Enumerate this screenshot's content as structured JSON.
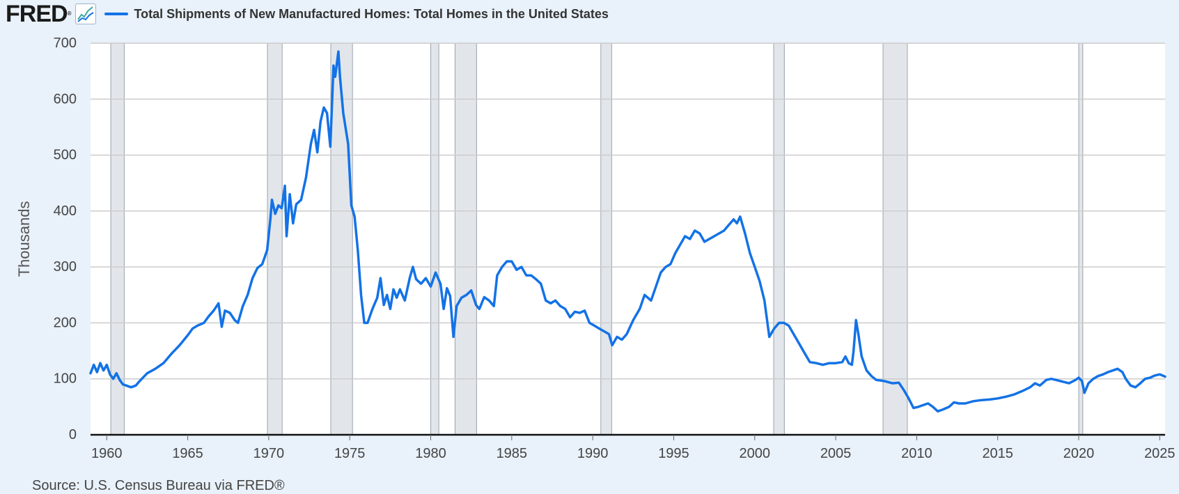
{
  "header": {
    "logo_text": "FRED",
    "logo_mark": "®",
    "icon": "line-graph-icon",
    "title": "Total Shipments of New Manufactured Homes: Total Homes in the United States"
  },
  "source": "Source: U.S. Census Bureau via FRED®",
  "colors": {
    "series": "#1372e6",
    "recession": "#e2e6ea",
    "recession_edge": "#9aa3ab",
    "grid": "#cccccc",
    "axis": "#111111",
    "page_bg": "#e9f1fa",
    "plot_bg": "#ffffff"
  },
  "chart_data": {
    "type": "line",
    "title": "Total Shipments of New Manufactured Homes: Total Homes in the United States",
    "xlabel": "",
    "ylabel": "Thousands",
    "xlim": [
      1959.0,
      2025.33
    ],
    "ylim": [
      0,
      700
    ],
    "x_ticks": [
      1960,
      1965,
      1970,
      1975,
      1980,
      1985,
      1990,
      1995,
      2000,
      2005,
      2010,
      2015,
      2020,
      2025
    ],
    "y_ticks": [
      0,
      100,
      200,
      300,
      400,
      500,
      600,
      700
    ],
    "grid": true,
    "recessions": [
      [
        1960.25,
        1961.08
      ],
      [
        1969.92,
        1970.83
      ],
      [
        1973.83,
        1975.17
      ],
      [
        1980.0,
        1980.5
      ],
      [
        1981.5,
        1982.83
      ],
      [
        1990.5,
        1991.17
      ],
      [
        2001.17,
        2001.83
      ],
      [
        2007.92,
        2009.42
      ],
      [
        2020.0,
        2020.25
      ]
    ],
    "series": [
      {
        "name": "Total Shipments of New Manufactured Homes: Total Homes in the United States",
        "points": [
          [
            1959.0,
            110
          ],
          [
            1959.2,
            125
          ],
          [
            1959.4,
            112
          ],
          [
            1959.6,
            128
          ],
          [
            1959.8,
            115
          ],
          [
            1960.0,
            125
          ],
          [
            1960.2,
            108
          ],
          [
            1960.4,
            100
          ],
          [
            1960.6,
            110
          ],
          [
            1960.8,
            98
          ],
          [
            1961.0,
            90
          ],
          [
            1961.2,
            88
          ],
          [
            1961.5,
            85
          ],
          [
            1961.8,
            88
          ],
          [
            1962.0,
            95
          ],
          [
            1962.5,
            110
          ],
          [
            1963.0,
            118
          ],
          [
            1963.5,
            128
          ],
          [
            1964.0,
            145
          ],
          [
            1964.5,
            160
          ],
          [
            1965.0,
            178
          ],
          [
            1965.3,
            190
          ],
          [
            1965.6,
            195
          ],
          [
            1966.0,
            200
          ],
          [
            1966.3,
            212
          ],
          [
            1966.6,
            222
          ],
          [
            1966.9,
            235
          ],
          [
            1967.1,
            193
          ],
          [
            1967.3,
            222
          ],
          [
            1967.6,
            218
          ],
          [
            1967.9,
            205
          ],
          [
            1968.1,
            200
          ],
          [
            1968.4,
            230
          ],
          [
            1968.7,
            250
          ],
          [
            1969.0,
            280
          ],
          [
            1969.3,
            298
          ],
          [
            1969.6,
            305
          ],
          [
            1969.9,
            330
          ],
          [
            1970.1,
            385
          ],
          [
            1970.2,
            420
          ],
          [
            1970.4,
            395
          ],
          [
            1970.6,
            410
          ],
          [
            1970.8,
            405
          ],
          [
            1971.0,
            445
          ],
          [
            1971.1,
            355
          ],
          [
            1971.3,
            430
          ],
          [
            1971.5,
            378
          ],
          [
            1971.7,
            412
          ],
          [
            1972.0,
            420
          ],
          [
            1972.3,
            460
          ],
          [
            1972.6,
            520
          ],
          [
            1972.8,
            545
          ],
          [
            1973.0,
            505
          ],
          [
            1973.2,
            560
          ],
          [
            1973.4,
            585
          ],
          [
            1973.6,
            575
          ],
          [
            1973.8,
            515
          ],
          [
            1974.0,
            660
          ],
          [
            1974.1,
            640
          ],
          [
            1974.3,
            685
          ],
          [
            1974.4,
            640
          ],
          [
            1974.6,
            575
          ],
          [
            1974.9,
            520
          ],
          [
            1975.1,
            410
          ],
          [
            1975.3,
            390
          ],
          [
            1975.5,
            330
          ],
          [
            1975.7,
            250
          ],
          [
            1975.9,
            200
          ],
          [
            1976.1,
            200
          ],
          [
            1976.4,
            225
          ],
          [
            1976.7,
            245
          ],
          [
            1976.9,
            280
          ],
          [
            1977.1,
            232
          ],
          [
            1977.3,
            250
          ],
          [
            1977.5,
            225
          ],
          [
            1977.7,
            260
          ],
          [
            1977.9,
            245
          ],
          [
            1978.1,
            260
          ],
          [
            1978.4,
            240
          ],
          [
            1978.7,
            280
          ],
          [
            1978.9,
            300
          ],
          [
            1979.1,
            278
          ],
          [
            1979.4,
            270
          ],
          [
            1979.7,
            280
          ],
          [
            1980.0,
            265
          ],
          [
            1980.3,
            290
          ],
          [
            1980.6,
            270
          ],
          [
            1980.8,
            225
          ],
          [
            1981.0,
            262
          ],
          [
            1981.2,
            248
          ],
          [
            1981.4,
            175
          ],
          [
            1981.6,
            230
          ],
          [
            1981.9,
            245
          ],
          [
            1982.2,
            250
          ],
          [
            1982.5,
            258
          ],
          [
            1982.8,
            232
          ],
          [
            1983.0,
            225
          ],
          [
            1983.3,
            246
          ],
          [
            1983.6,
            240
          ],
          [
            1983.9,
            230
          ],
          [
            1984.1,
            285
          ],
          [
            1984.4,
            300
          ],
          [
            1984.7,
            310
          ],
          [
            1985.0,
            310
          ],
          [
            1985.3,
            295
          ],
          [
            1985.6,
            300
          ],
          [
            1985.9,
            285
          ],
          [
            1986.2,
            285
          ],
          [
            1986.5,
            278
          ],
          [
            1986.8,
            270
          ],
          [
            1987.1,
            240
          ],
          [
            1987.4,
            235
          ],
          [
            1987.7,
            240
          ],
          [
            1988.0,
            230
          ],
          [
            1988.3,
            225
          ],
          [
            1988.6,
            210
          ],
          [
            1988.9,
            220
          ],
          [
            1989.2,
            218
          ],
          [
            1989.5,
            222
          ],
          [
            1989.8,
            200
          ],
          [
            1990.1,
            195
          ],
          [
            1990.4,
            190
          ],
          [
            1990.7,
            185
          ],
          [
            1991.0,
            180
          ],
          [
            1991.2,
            160
          ],
          [
            1991.5,
            175
          ],
          [
            1991.8,
            170
          ],
          [
            1992.1,
            180
          ],
          [
            1992.5,
            205
          ],
          [
            1992.9,
            225
          ],
          [
            1993.2,
            250
          ],
          [
            1993.6,
            240
          ],
          [
            1993.9,
            265
          ],
          [
            1994.2,
            290
          ],
          [
            1994.5,
            300
          ],
          [
            1994.8,
            305
          ],
          [
            1995.1,
            325
          ],
          [
            1995.4,
            340
          ],
          [
            1995.7,
            355
          ],
          [
            1996.0,
            350
          ],
          [
            1996.3,
            365
          ],
          [
            1996.6,
            360
          ],
          [
            1996.9,
            345
          ],
          [
            1997.2,
            350
          ],
          [
            1997.5,
            355
          ],
          [
            1997.8,
            360
          ],
          [
            1998.1,
            365
          ],
          [
            1998.4,
            375
          ],
          [
            1998.7,
            385
          ],
          [
            1998.9,
            378
          ],
          [
            1999.1,
            390
          ],
          [
            1999.4,
            360
          ],
          [
            1999.7,
            325
          ],
          [
            2000.0,
            300
          ],
          [
            2000.3,
            275
          ],
          [
            2000.6,
            240
          ],
          [
            2000.9,
            175
          ],
          [
            2001.2,
            190
          ],
          [
            2001.5,
            200
          ],
          [
            2001.8,
            200
          ],
          [
            2002.1,
            195
          ],
          [
            2002.4,
            180
          ],
          [
            2002.7,
            165
          ],
          [
            2003.0,
            150
          ],
          [
            2003.4,
            130
          ],
          [
            2003.8,
            128
          ],
          [
            2004.2,
            125
          ],
          [
            2004.6,
            128
          ],
          [
            2005.0,
            128
          ],
          [
            2005.4,
            130
          ],
          [
            2005.6,
            140
          ],
          [
            2005.8,
            128
          ],
          [
            2006.0,
            125
          ],
          [
            2006.1,
            150
          ],
          [
            2006.25,
            205
          ],
          [
            2006.4,
            180
          ],
          [
            2006.6,
            140
          ],
          [
            2006.9,
            115
          ],
          [
            2007.2,
            105
          ],
          [
            2007.5,
            98
          ],
          [
            2008.0,
            96
          ],
          [
            2008.5,
            92
          ],
          [
            2008.9,
            93
          ],
          [
            2009.2,
            80
          ],
          [
            2009.5,
            65
          ],
          [
            2009.8,
            48
          ],
          [
            2010.1,
            50
          ],
          [
            2010.4,
            53
          ],
          [
            2010.7,
            56
          ],
          [
            2011.0,
            50
          ],
          [
            2011.3,
            42
          ],
          [
            2011.6,
            45
          ],
          [
            2012.0,
            50
          ],
          [
            2012.3,
            58
          ],
          [
            2012.6,
            56
          ],
          [
            2013.0,
            56
          ],
          [
            2013.5,
            60
          ],
          [
            2014.0,
            62
          ],
          [
            2014.5,
            63
          ],
          [
            2015.0,
            65
          ],
          [
            2015.5,
            68
          ],
          [
            2016.0,
            72
          ],
          [
            2016.5,
            78
          ],
          [
            2017.0,
            85
          ],
          [
            2017.3,
            92
          ],
          [
            2017.6,
            88
          ],
          [
            2018.0,
            98
          ],
          [
            2018.3,
            100
          ],
          [
            2018.6,
            98
          ],
          [
            2019.0,
            95
          ],
          [
            2019.4,
            92
          ],
          [
            2019.8,
            98
          ],
          [
            2020.0,
            102
          ],
          [
            2020.2,
            96
          ],
          [
            2020.35,
            75
          ],
          [
            2020.6,
            92
          ],
          [
            2020.9,
            100
          ],
          [
            2021.2,
            105
          ],
          [
            2021.5,
            108
          ],
          [
            2021.8,
            112
          ],
          [
            2022.1,
            115
          ],
          [
            2022.4,
            118
          ],
          [
            2022.7,
            112
          ],
          [
            2022.9,
            100
          ],
          [
            2023.2,
            88
          ],
          [
            2023.5,
            85
          ],
          [
            2023.8,
            92
          ],
          [
            2024.1,
            100
          ],
          [
            2024.4,
            102
          ],
          [
            2024.7,
            106
          ],
          [
            2025.0,
            108
          ],
          [
            2025.33,
            104
          ]
        ]
      }
    ]
  }
}
